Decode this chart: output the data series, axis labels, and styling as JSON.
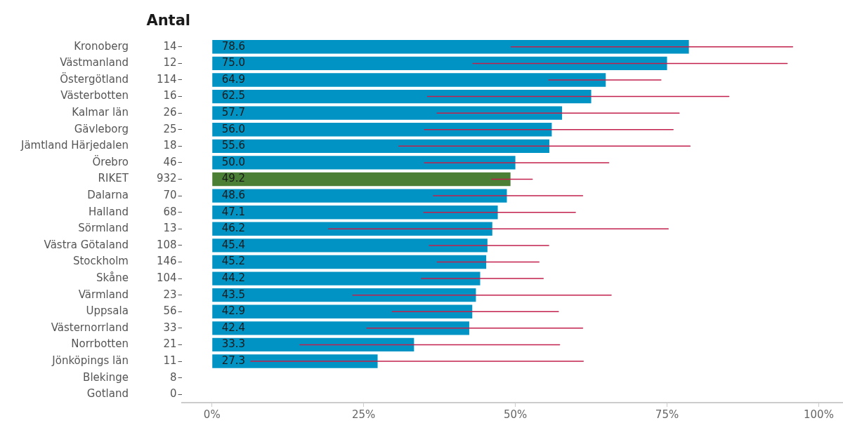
{
  "chart_data": {
    "type": "bar",
    "orientation": "horizontal",
    "ylabel": "Antal",
    "categories": [
      "Kronoberg",
      "Västmanland",
      "Östergötland",
      "Västerbotten",
      "Kalmar län",
      "Gävleborg",
      "Jämtland Härjedalen",
      "Örebro",
      "RIKET",
      "Dalarna",
      "Halland",
      "Sörmland",
      "Västra Götaland",
      "Stockholm",
      "Skåne",
      "Värmland",
      "Uppsala",
      "Västernorrland",
      "Norrbotten",
      "Jönköpings län",
      "Blekinge",
      "Gotland"
    ],
    "y2_categories": [
      "14",
      "12",
      "114",
      "16",
      "26",
      "25",
      "18",
      "46",
      "932",
      "70",
      "68",
      "13",
      "108",
      "146",
      "104",
      "23",
      "56",
      "33",
      "21",
      "11",
      "8",
      "0"
    ],
    "values": [
      78.6,
      75.0,
      64.9,
      62.5,
      57.7,
      56.0,
      55.6,
      50.0,
      49.2,
      48.6,
      47.1,
      46.2,
      45.4,
      45.2,
      44.2,
      43.5,
      42.9,
      42.4,
      33.3,
      27.3,
      null,
      null
    ],
    "colors": [
      "#0093c4",
      "#0093c4",
      "#0093c4",
      "#0093c4",
      "#0093c4",
      "#0093c4",
      "#0093c4",
      "#0093c4",
      "#4a7f35",
      "#0093c4",
      "#0093c4",
      "#0093c4",
      "#0093c4",
      "#0093c4",
      "#0093c4",
      "#0093c4",
      "#0093c4",
      "#0093c4",
      "#0093c4",
      "#0093c4",
      "#0093c4",
      "#0093c4"
    ],
    "errors": [
      [
        49.3,
        95.7
      ],
      [
        43.0,
        94.8
      ],
      [
        55.5,
        74.0
      ],
      [
        35.5,
        85.2
      ],
      [
        37.1,
        77.0
      ],
      [
        35.0,
        76.0
      ],
      [
        30.8,
        78.8
      ],
      [
        35.0,
        65.4
      ],
      [
        46.1,
        52.8
      ],
      [
        36.5,
        61.1
      ],
      [
        34.9,
        59.9
      ],
      [
        19.2,
        75.2
      ],
      [
        35.8,
        55.5
      ],
      [
        37.1,
        53.9
      ],
      [
        34.5,
        54.6
      ],
      [
        23.2,
        65.8
      ],
      [
        29.7,
        57.1
      ],
      [
        25.5,
        61.1
      ],
      [
        14.5,
        57.3
      ],
      [
        6.4,
        61.2
      ],
      null,
      null
    ],
    "value_labels": [
      "78.6",
      "75.0",
      "64.9",
      "62.5",
      "57.7",
      "56.0",
      "55.6",
      "50.0",
      "49.2",
      "48.6",
      "47.1",
      "46.2",
      "45.4",
      "45.2",
      "44.2",
      "43.5",
      "42.9",
      "42.4",
      "33.3",
      "27.3",
      null,
      null
    ],
    "xlim": [
      -5,
      104
    ],
    "xticks": [
      {
        "value": 0,
        "label": "0%"
      },
      {
        "value": 25,
        "label": "25%"
      },
      {
        "value": 50,
        "label": "50%"
      },
      {
        "value": 75,
        "label": "75%"
      },
      {
        "value": 100,
        "label": "100%"
      }
    ],
    "grid": false,
    "legend": false
  }
}
